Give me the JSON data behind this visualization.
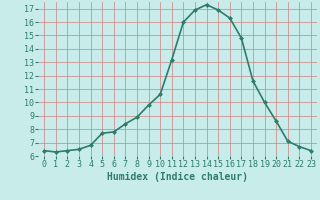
{
  "x": [
    0,
    1,
    2,
    3,
    4,
    5,
    6,
    7,
    8,
    9,
    10,
    11,
    12,
    13,
    14,
    15,
    16,
    17,
    18,
    19,
    20,
    21,
    22,
    23
  ],
  "y": [
    6.4,
    6.3,
    6.4,
    6.5,
    6.8,
    7.7,
    7.8,
    8.4,
    8.9,
    9.8,
    10.6,
    13.2,
    16.0,
    16.9,
    17.3,
    16.9,
    16.3,
    14.8,
    11.6,
    10.0,
    8.6,
    7.1,
    6.7,
    6.4
  ],
  "line_color": "#2d7c6e",
  "marker": "D",
  "marker_size": 2,
  "bg_color": "#c8ece9",
  "grid_color": "#d08080",
  "xlabel": "Humidex (Indice chaleur)",
  "ylim": [
    6,
    17.5
  ],
  "xlim": [
    -0.5,
    23.5
  ],
  "yticks": [
    6,
    7,
    8,
    9,
    10,
    11,
    12,
    13,
    14,
    15,
    16,
    17
  ],
  "xticks": [
    0,
    1,
    2,
    3,
    4,
    5,
    6,
    7,
    8,
    9,
    10,
    11,
    12,
    13,
    14,
    15,
    16,
    17,
    18,
    19,
    20,
    21,
    22,
    23
  ],
  "tick_label_color": "#2d7c6e",
  "xlabel_color": "#2d7c6e",
  "xlabel_fontsize": 7,
  "tick_fontsize": 6,
  "linewidth": 1.2
}
